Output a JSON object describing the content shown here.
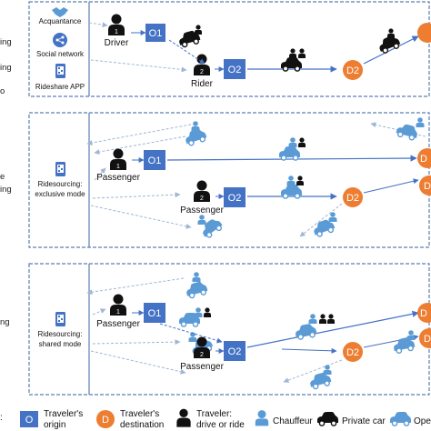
{
  "colors": {
    "panel_border": "#5a7fb0",
    "origin_fill": "#4472c4",
    "destination_fill": "#ed7d31",
    "person": "#111111",
    "car_private": "#111111",
    "car_operating": "#5b9bd5",
    "arrow_dashed": "#9fb6d6",
    "arrow_solid": "#4472c4"
  },
  "panels": [
    {
      "side_label_lines": [
        "ing",
        "ing",
        "o"
      ],
      "app_items": [
        {
          "icon": "handshake-icon",
          "label": "Acquantance"
        },
        {
          "icon": "share-icon",
          "label": "Social network"
        },
        {
          "icon": "qr-phone-icon",
          "label": "Rideshare APP"
        }
      ],
      "travelers": [
        {
          "number": "1",
          "label": "Driver"
        },
        {
          "number": "2",
          "label": "Rider"
        }
      ],
      "origins": [
        "O1",
        "O2"
      ],
      "destinations": [
        "D2"
      ]
    },
    {
      "side_label_lines": [
        "e",
        "ing"
      ],
      "app_items": [
        {
          "icon": "qr-phone-icon",
          "label": "Ridesourcing:"
        },
        {
          "icon": "",
          "label": "exclusive mode"
        }
      ],
      "travelers": [
        {
          "number": "1",
          "label": "Passenger"
        },
        {
          "number": "2",
          "label": "Passenger"
        }
      ],
      "origins": [
        "O1",
        "O2"
      ],
      "destinations": [
        "D",
        "D2",
        "D"
      ]
    },
    {
      "side_label_lines": [
        "ng"
      ],
      "app_items": [
        {
          "icon": "qr-phone-icon",
          "label": "Ridesourcing:"
        },
        {
          "icon": "",
          "label": "shared mode"
        }
      ],
      "travelers": [
        {
          "number": "1",
          "label": "Passenger"
        },
        {
          "number": "2",
          "label": "Passenger"
        }
      ],
      "origins": [
        "O1",
        "O2"
      ],
      "destinations": [
        "D",
        "D2",
        "D"
      ]
    }
  ],
  "legend": {
    "lead": ":",
    "items": [
      {
        "icon": "origin-square",
        "symbol": "O",
        "lines": [
          "Traveler's",
          "origin"
        ]
      },
      {
        "icon": "destination-circle",
        "symbol": "D",
        "lines": [
          "Traveler's",
          "destination"
        ]
      },
      {
        "icon": "person-icon",
        "lines": [
          "Traveler:",
          "drive or ride"
        ]
      },
      {
        "icon": "chauffeur-icon",
        "lines": [
          "Chauffeur"
        ]
      },
      {
        "icon": "private-car-icon",
        "lines": [
          "Private car"
        ]
      },
      {
        "icon": "operating-car-icon",
        "lines": [
          "Ope"
        ]
      }
    ]
  }
}
